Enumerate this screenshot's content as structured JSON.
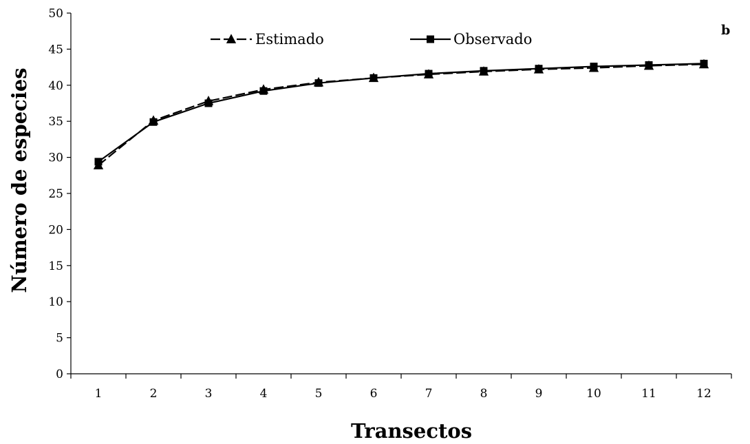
{
  "chart_data": {
    "type": "line",
    "title": "",
    "panel_label": "b",
    "xlabel": "Transectos",
    "ylabel": "Número de especies",
    "x": [
      "1",
      "2",
      "3",
      "4",
      "5",
      "6",
      "7",
      "8",
      "9",
      "10",
      "11",
      "12"
    ],
    "ylim": [
      0,
      50
    ],
    "yticks": [
      0,
      5,
      10,
      15,
      20,
      25,
      30,
      35,
      40,
      45,
      50
    ],
    "grid": false,
    "legend_position": "top",
    "series": [
      {
        "name": "Estimado",
        "marker": "triangle",
        "line": "dashed",
        "color": "#000000",
        "values": [
          28.9,
          35.1,
          37.8,
          39.4,
          40.4,
          41.0,
          41.5,
          41.9,
          42.2,
          42.4,
          42.7,
          42.9
        ]
      },
      {
        "name": "Observado",
        "marker": "square",
        "line": "solid",
        "color": "#000000",
        "values": [
          29.4,
          34.9,
          37.5,
          39.2,
          40.3,
          41.0,
          41.6,
          42.0,
          42.3,
          42.6,
          42.8,
          43.0
        ]
      }
    ]
  }
}
